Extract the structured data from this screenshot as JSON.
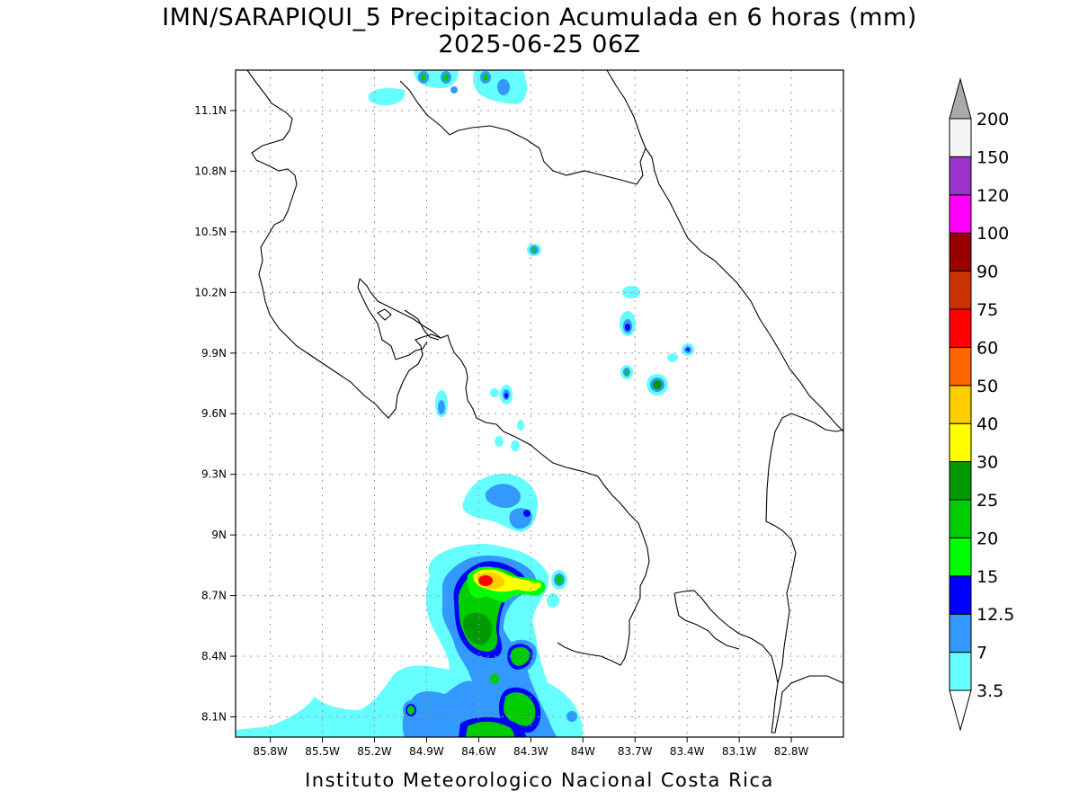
{
  "title": {
    "line1": "IMN/SARAPIQUI_5 Precipitacion Acumulada en 6 horas (mm)",
    "line2": "2025-06-25 06Z"
  },
  "footer": "Instituto Meteorologico Nacional Costa Rica",
  "map": {
    "lon_range": [
      -86.0,
      -82.5
    ],
    "lat_range": [
      8.0,
      11.3
    ],
    "lon_ticks": [
      {
        "value": -85.8,
        "label": "85.8W"
      },
      {
        "value": -85.5,
        "label": "85.5W"
      },
      {
        "value": -85.2,
        "label": "85.2W"
      },
      {
        "value": -84.9,
        "label": "84.9W"
      },
      {
        "value": -84.6,
        "label": "84.6W"
      },
      {
        "value": -84.3,
        "label": "84.3W"
      },
      {
        "value": -84.0,
        "label": "84W"
      },
      {
        "value": -83.7,
        "label": "83.7W"
      },
      {
        "value": -83.4,
        "label": "83.4W"
      },
      {
        "value": -83.1,
        "label": "83.1W"
      },
      {
        "value": -82.8,
        "label": "82.8W"
      }
    ],
    "lat_ticks": [
      {
        "value": 8.1,
        "label": "8.1N"
      },
      {
        "value": 8.4,
        "label": "8.4N"
      },
      {
        "value": 8.7,
        "label": "8.7N"
      },
      {
        "value": 9.0,
        "label": "9N"
      },
      {
        "value": 9.3,
        "label": "9.3N"
      },
      {
        "value": 9.6,
        "label": "9.6N"
      },
      {
        "value": 9.9,
        "label": "9.9N"
      },
      {
        "value": 10.2,
        "label": "10.2N"
      },
      {
        "value": 10.5,
        "label": "10.5N"
      },
      {
        "value": 10.8,
        "label": "10.8N"
      },
      {
        "value": 11.1,
        "label": "11.1N"
      }
    ],
    "grid": true
  },
  "colorbar": {
    "labels": [
      "3.5",
      "7",
      "12.5",
      "15",
      "20",
      "25",
      "30",
      "40",
      "50",
      "60",
      "75",
      "90",
      "100",
      "120",
      "150",
      "200"
    ],
    "colors": [
      "#66ffff",
      "#3399ff",
      "#0000ff",
      "#00ff00",
      "#00cc00",
      "#009900",
      "#ffff00",
      "#ffcc00",
      "#ff6600",
      "#ff0000",
      "#cc3300",
      "#990000",
      "#ff00ff",
      "#9933cc",
      "#f5f5f5"
    ],
    "over_color": "#aaaaaa",
    "under_color": "#ffffff"
  }
}
